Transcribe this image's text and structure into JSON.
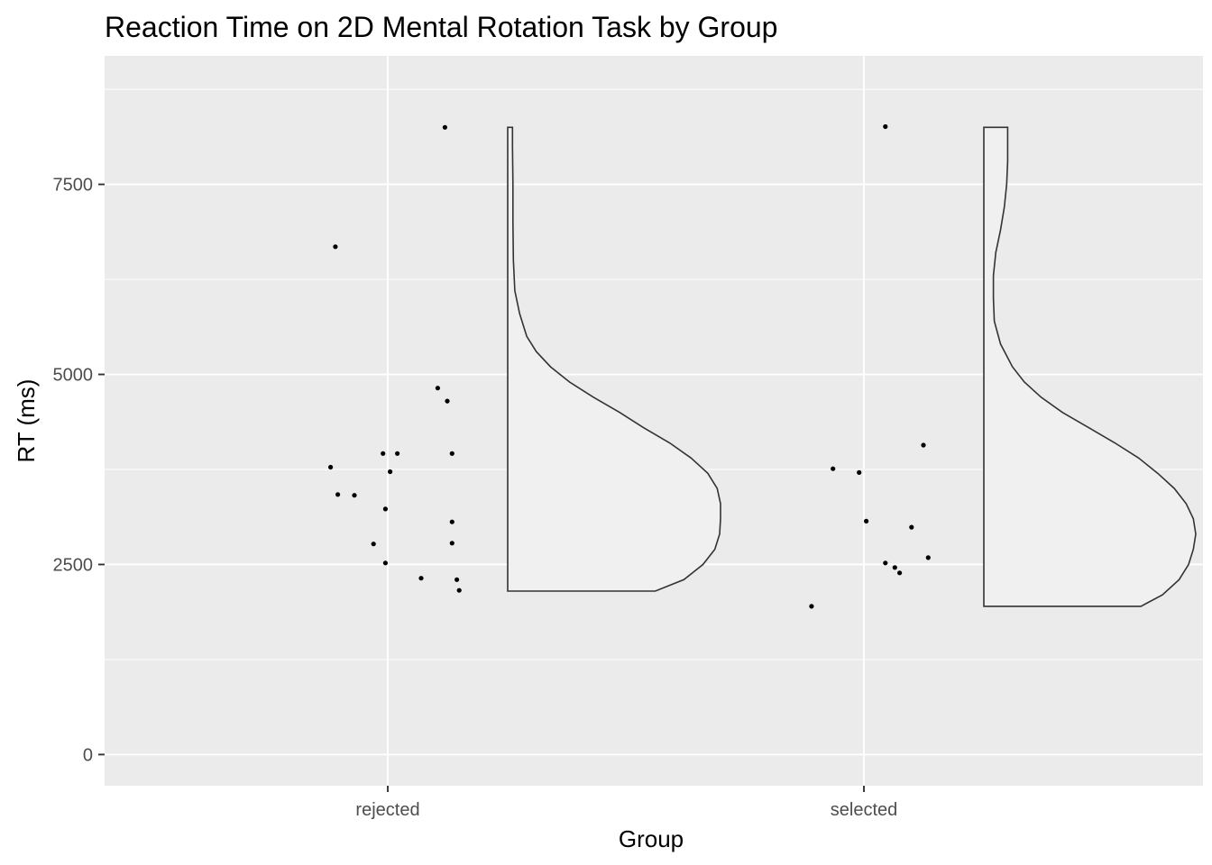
{
  "chart_data": {
    "type": "violin",
    "title": "Reaction Time on 2D Mental Rotation Task by Group",
    "xlabel": "Group",
    "ylabel": "RT (ms)",
    "categories": [
      "rejected",
      "selected"
    ],
    "ylim": [
      -410,
      9190
    ],
    "yticks": [
      0,
      2500,
      5000,
      7500
    ],
    "grid": true,
    "panel_background": "#ebebeb",
    "violin_fill": "#f0f0f0",
    "violin_stroke": "#333333",
    "point_color": "#000000",
    "series": [
      {
        "category": "rejected",
        "points": [
          {
            "jitter": -0.12,
            "y": 3780
          },
          {
            "jitter": -0.11,
            "y": 6680
          },
          {
            "jitter": -0.105,
            "y": 3420
          },
          {
            "jitter": -0.07,
            "y": 3410
          },
          {
            "jitter": -0.03,
            "y": 2770
          },
          {
            "jitter": -0.01,
            "y": 3960
          },
          {
            "jitter": -0.005,
            "y": 3230
          },
          {
            "jitter": -0.005,
            "y": 2520
          },
          {
            "jitter": 0.005,
            "y": 3720
          },
          {
            "jitter": 0.02,
            "y": 3960
          },
          {
            "jitter": 0.07,
            "y": 2320
          },
          {
            "jitter": 0.105,
            "y": 4820
          },
          {
            "jitter": 0.12,
            "y": 8250
          },
          {
            "jitter": 0.125,
            "y": 4650
          },
          {
            "jitter": 0.135,
            "y": 3960
          },
          {
            "jitter": 0.135,
            "y": 3060
          },
          {
            "jitter": 0.135,
            "y": 2780
          },
          {
            "jitter": 0.145,
            "y": 2300
          },
          {
            "jitter": 0.15,
            "y": 2160
          }
        ],
        "density": [
          [
            2150,
            0.31
          ],
          [
            2300,
            0.37
          ],
          [
            2500,
            0.41
          ],
          [
            2700,
            0.435
          ],
          [
            2900,
            0.445
          ],
          [
            3100,
            0.447
          ],
          [
            3300,
            0.447
          ],
          [
            3500,
            0.44
          ],
          [
            3700,
            0.42
          ],
          [
            3900,
            0.385
          ],
          [
            4100,
            0.34
          ],
          [
            4300,
            0.285
          ],
          [
            4500,
            0.235
          ],
          [
            4700,
            0.18
          ],
          [
            4900,
            0.13
          ],
          [
            5100,
            0.09
          ],
          [
            5300,
            0.06
          ],
          [
            5500,
            0.04
          ],
          [
            5800,
            0.025
          ],
          [
            6100,
            0.015
          ],
          [
            6500,
            0.012
          ],
          [
            7000,
            0.011
          ],
          [
            7500,
            0.011
          ],
          [
            8000,
            0.01
          ],
          [
            8250,
            0.01
          ]
        ]
      },
      {
        "category": "selected",
        "points": [
          {
            "jitter": -0.11,
            "y": 1950
          },
          {
            "jitter": -0.065,
            "y": 3760
          },
          {
            "jitter": -0.01,
            "y": 3710
          },
          {
            "jitter": 0.005,
            "y": 3070
          },
          {
            "jitter": 0.045,
            "y": 8260
          },
          {
            "jitter": 0.045,
            "y": 2520
          },
          {
            "jitter": 0.065,
            "y": 2460
          },
          {
            "jitter": 0.075,
            "y": 2390
          },
          {
            "jitter": 0.1,
            "y": 2990
          },
          {
            "jitter": 0.125,
            "y": 4070
          },
          {
            "jitter": 0.135,
            "y": 2590
          }
        ],
        "density": [
          [
            1950,
            0.33
          ],
          [
            2100,
            0.375
          ],
          [
            2300,
            0.41
          ],
          [
            2500,
            0.43
          ],
          [
            2700,
            0.44
          ],
          [
            2900,
            0.445
          ],
          [
            3100,
            0.44
          ],
          [
            3300,
            0.425
          ],
          [
            3500,
            0.4
          ],
          [
            3700,
            0.365
          ],
          [
            3900,
            0.325
          ],
          [
            4100,
            0.275
          ],
          [
            4300,
            0.22
          ],
          [
            4500,
            0.165
          ],
          [
            4700,
            0.12
          ],
          [
            4900,
            0.085
          ],
          [
            5100,
            0.06
          ],
          [
            5400,
            0.035
          ],
          [
            5700,
            0.022
          ],
          [
            6000,
            0.02
          ],
          [
            6300,
            0.02
          ],
          [
            6600,
            0.025
          ],
          [
            6900,
            0.035
          ],
          [
            7200,
            0.043
          ],
          [
            7500,
            0.048
          ],
          [
            7800,
            0.05
          ],
          [
            8050,
            0.05
          ],
          [
            8250,
            0.05
          ]
        ]
      }
    ]
  }
}
